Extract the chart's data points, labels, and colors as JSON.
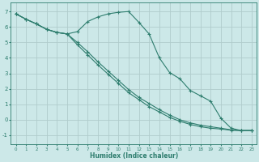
{
  "xlabel": "Humidex (Indice chaleur)",
  "bg_color": "#cce8e8",
  "grid_color": "#b0cccc",
  "line_color": "#2e7d6e",
  "xlim": [
    -0.5,
    23.5
  ],
  "ylim": [
    -1.6,
    7.6
  ],
  "xticks": [
    0,
    1,
    2,
    3,
    4,
    5,
    6,
    7,
    8,
    9,
    10,
    11,
    12,
    13,
    14,
    15,
    16,
    17,
    18,
    19,
    20,
    21,
    22,
    23
  ],
  "yticks": [
    -1,
    0,
    1,
    2,
    3,
    4,
    5,
    6,
    7
  ],
  "series1_x": [
    0,
    1,
    2,
    3,
    4,
    5,
    6,
    7,
    8,
    9,
    10,
    11,
    12,
    13,
    14,
    15,
    16,
    17,
    18,
    19,
    20,
    21,
    22,
    23
  ],
  "series1_y": [
    6.85,
    6.5,
    6.2,
    5.85,
    5.65,
    5.55,
    5.7,
    6.35,
    6.65,
    6.85,
    6.95,
    7.0,
    6.3,
    5.55,
    4.0,
    3.05,
    2.65,
    1.9,
    1.55,
    1.2,
    0.1,
    -0.55,
    -0.7,
    -0.7
  ],
  "series2_x": [
    0,
    1,
    2,
    3,
    4,
    5,
    6,
    7,
    8,
    9,
    10,
    11,
    12,
    13,
    14,
    15,
    16,
    17,
    18,
    19,
    20,
    21,
    22,
    23
  ],
  "series2_y": [
    6.85,
    6.5,
    6.2,
    5.85,
    5.65,
    5.55,
    5.0,
    4.4,
    3.75,
    3.15,
    2.55,
    1.95,
    1.45,
    1.05,
    0.65,
    0.3,
    0.0,
    -0.2,
    -0.35,
    -0.45,
    -0.55,
    -0.65,
    -0.7,
    -0.7
  ],
  "series3_x": [
    0,
    1,
    2,
    3,
    4,
    5,
    6,
    7,
    8,
    9,
    10,
    11,
    12,
    13,
    14,
    15,
    16,
    17,
    18,
    19,
    20,
    21,
    22,
    23
  ],
  "series3_y": [
    6.85,
    6.5,
    6.2,
    5.85,
    5.65,
    5.55,
    4.85,
    4.2,
    3.55,
    2.95,
    2.35,
    1.75,
    1.3,
    0.85,
    0.5,
    0.15,
    -0.1,
    -0.3,
    -0.45,
    -0.55,
    -0.6,
    -0.68,
    -0.7,
    -0.7
  ]
}
